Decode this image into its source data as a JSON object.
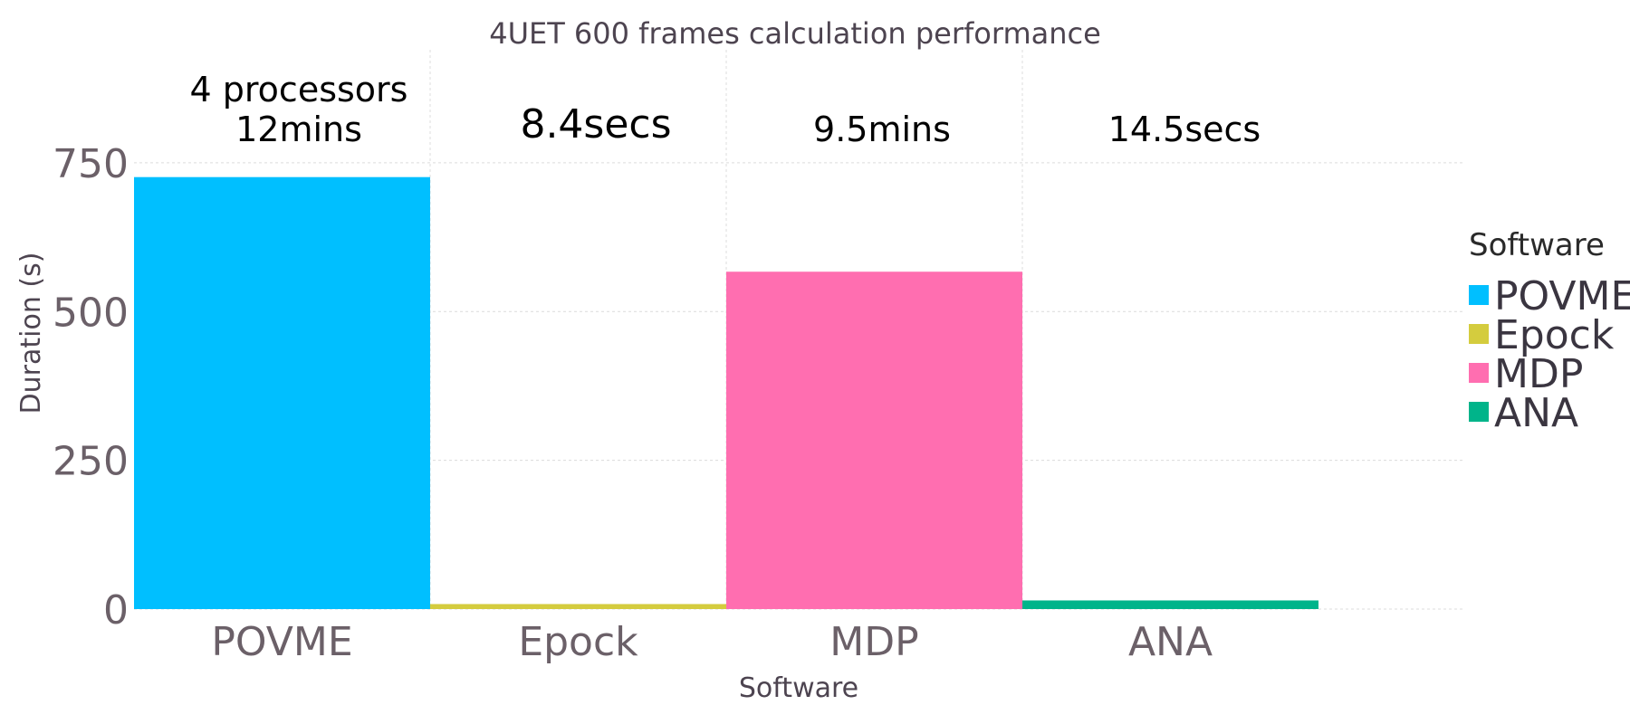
{
  "chart_data": {
    "type": "bar",
    "title": "4UET 600 frames calculation performance",
    "xlabel": "Software",
    "ylabel": "Duration (s)",
    "categories": [
      "POVME",
      "Epock",
      "MDP",
      "ANA"
    ],
    "values": [
      726,
      8.4,
      567,
      14.5
    ],
    "colors": [
      "#00bfff",
      "#d4cc3e",
      "#ff6eb0",
      "#00b48a"
    ],
    "ylim": [
      0,
      940
    ],
    "yticks": [
      0,
      250,
      500,
      750
    ],
    "grid": true,
    "annotations": [
      {
        "category": "POVME",
        "lines": [
          "4 processors",
          "12mins"
        ],
        "size": "normal"
      },
      {
        "category": "Epock",
        "lines": [
          "8.4secs"
        ],
        "size": "large"
      },
      {
        "category": "MDP",
        "lines": [
          "9.5mins"
        ],
        "size": "normal"
      },
      {
        "category": "ANA",
        "lines": [
          "14.5secs"
        ],
        "size": "normal"
      }
    ],
    "legend": {
      "title": "Software",
      "position": "right",
      "entries": [
        "POVME",
        "Epock",
        "MDP",
        "ANA"
      ]
    }
  }
}
